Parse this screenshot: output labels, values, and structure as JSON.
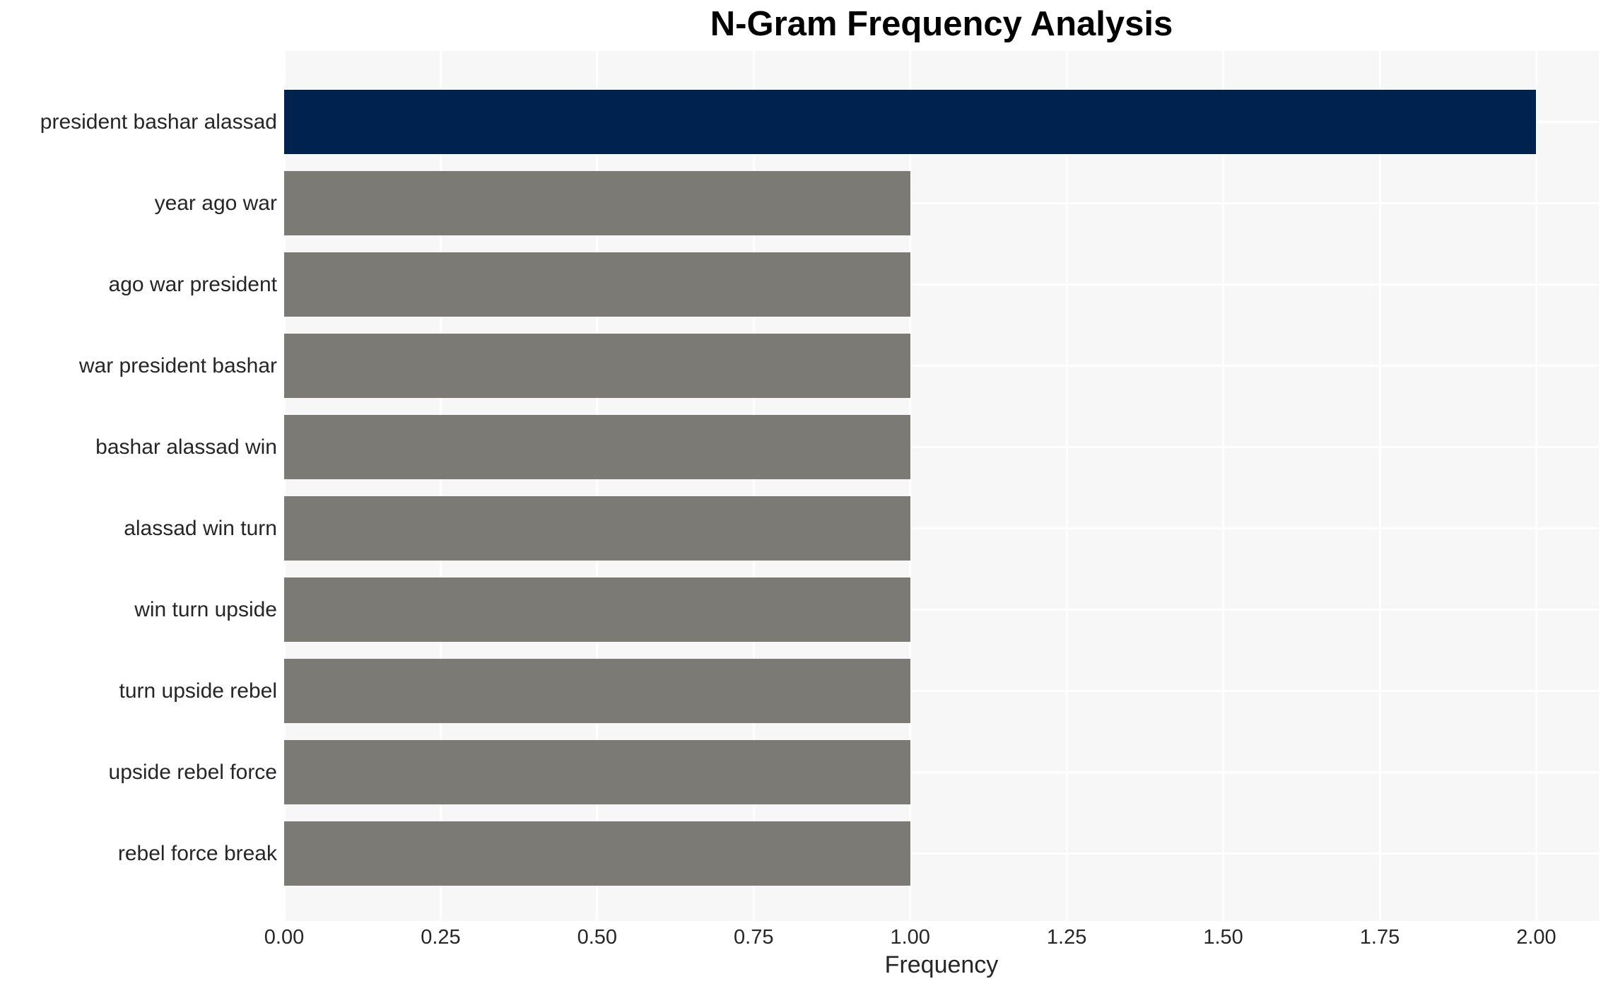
{
  "chart_data": {
    "type": "bar",
    "orientation": "horizontal",
    "title": "N-Gram Frequency Analysis",
    "xlabel": "Frequency",
    "ylabel": "",
    "categories": [
      "president bashar alassad",
      "year ago war",
      "ago war president",
      "war president bashar",
      "bashar alassad win",
      "alassad win turn",
      "win turn upside",
      "turn upside rebel",
      "upside rebel force",
      "rebel force break"
    ],
    "values": [
      2,
      1,
      1,
      1,
      1,
      1,
      1,
      1,
      1,
      1
    ],
    "bar_colors": [
      "#00224f",
      "#7b7a74",
      "#7b7a74",
      "#7b7a74",
      "#7b7a74",
      "#7b7a74",
      "#7b7a74",
      "#7b7a74",
      "#7b7a74",
      "#7b7a74"
    ],
    "xlim": [
      0,
      2.1
    ],
    "xticks": [
      "0.00",
      "0.25",
      "0.50",
      "0.75",
      "1.00",
      "1.25",
      "1.50",
      "1.75",
      "2.00"
    ],
    "xtick_values": [
      0,
      0.25,
      0.5,
      0.75,
      1.0,
      1.25,
      1.5,
      1.75,
      2.0
    ],
    "grid": true,
    "legend": false,
    "colors": {
      "highlight_bar": "#00224f",
      "default_bar": "#7b7a74",
      "plot_background": "#f7f7f7",
      "grid_line": "#ffffff",
      "figure_background": "#ffffff",
      "tick_label": "#262626",
      "title": "#000000"
    }
  }
}
